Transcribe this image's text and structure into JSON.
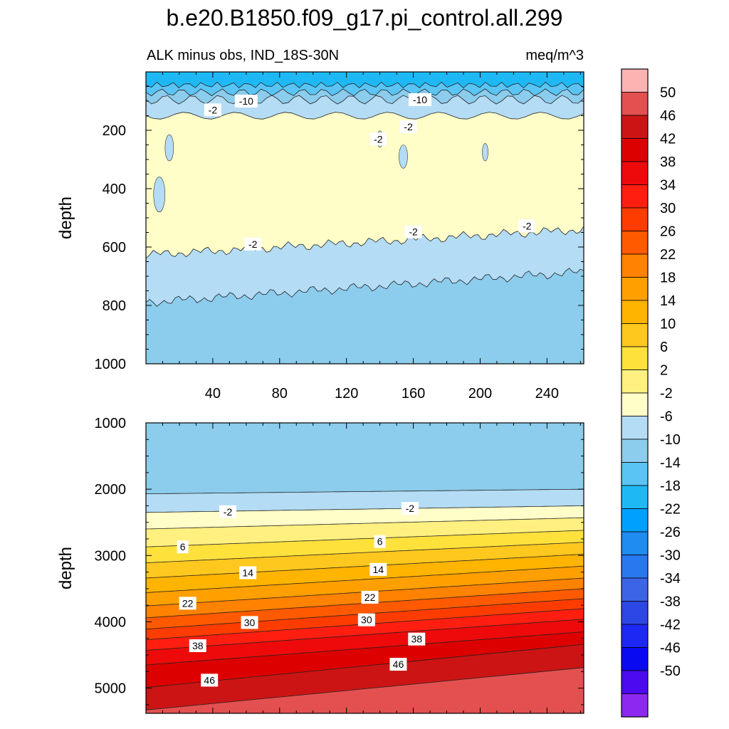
{
  "chart_data": [
    {
      "type": "contour",
      "panel": "upper",
      "title": "b.e20.B1850.f09_g17.pi_control.all.299",
      "subtitle_left": "ALK minus obs, IND_18S-30N",
      "subtitle_right": "meq/m^3",
      "xlabel": "",
      "ylabel": "depth",
      "xlim": [
        0,
        262
      ],
      "ylim": [
        1000,
        0
      ],
      "x_ticks": [
        40,
        80,
        120,
        160,
        200,
        240
      ],
      "y_ticks": [
        200,
        400,
        600,
        800,
        1000
      ],
      "contour_levels": [
        -50,
        -46,
        -42,
        -38,
        -34,
        -30,
        -26,
        -22,
        -18,
        -14,
        -10,
        -6,
        -2,
        2,
        6,
        10,
        14,
        18,
        22,
        26,
        30,
        34,
        38,
        42,
        46,
        50
      ],
      "contour_lines": [
        {
          "level": -2,
          "depth_left": 627,
          "depth_right": 540
        },
        {
          "level": -6,
          "depth_left": 790,
          "depth_right": 685
        }
      ],
      "contour_labels": [
        {
          "text": "-2",
          "x": 40,
          "depth": 130
        },
        {
          "text": "-10",
          "x": 60,
          "depth": 100
        },
        {
          "text": "-10",
          "x": 164,
          "depth": 95
        },
        {
          "text": "-2",
          "x": 139,
          "depth": 230
        },
        {
          "text": "-2",
          "x": 157,
          "depth": 188
        },
        {
          "text": "-2",
          "x": 64,
          "depth": 590
        },
        {
          "text": "-2",
          "x": 160,
          "depth": 548
        },
        {
          "text": "-2",
          "x": 228,
          "depth": 528
        }
      ]
    },
    {
      "type": "contour",
      "panel": "lower",
      "xlabel": "",
      "ylabel": "depth",
      "xlim": [
        0,
        262
      ],
      "ylim": [
        5380,
        1000
      ],
      "y_ticks": [
        1000,
        2000,
        3000,
        4000,
        5000
      ],
      "contour_lines": [
        {
          "level": -6,
          "depth_left": 2070,
          "depth_right": 2000
        },
        {
          "level": -2,
          "depth_left": 2350,
          "depth_right": 2250
        },
        {
          "level": 2,
          "depth_left": 2600,
          "depth_right": 2430
        },
        {
          "level": 6,
          "depth_left": 2870,
          "depth_right": 2620
        },
        {
          "level": 10,
          "depth_left": 3110,
          "depth_right": 2800
        },
        {
          "level": 14,
          "depth_left": 3340,
          "depth_right": 2980
        },
        {
          "level": 18,
          "depth_left": 3560,
          "depth_right": 3160
        },
        {
          "level": 22,
          "depth_left": 3760,
          "depth_right": 3340
        },
        {
          "level": 26,
          "depth_left": 3940,
          "depth_right": 3500
        },
        {
          "level": 30,
          "depth_left": 4110,
          "depth_right": 3650
        },
        {
          "level": 34,
          "depth_left": 4270,
          "depth_right": 3800
        },
        {
          "level": 38,
          "depth_left": 4430,
          "depth_right": 3960
        },
        {
          "level": 42,
          "depth_left": 4650,
          "depth_right": 4150
        },
        {
          "level": 46,
          "depth_left": 4990,
          "depth_right": 4340
        },
        {
          "level": 50,
          "depth_left": 5330,
          "depth_right": 4690
        }
      ],
      "contour_labels": [
        {
          "text": "-2",
          "x": 49,
          "depth": 2340
        },
        {
          "text": "-2",
          "x": 158,
          "depth": 2290
        },
        {
          "text": "6",
          "x": 22,
          "depth": 2870
        },
        {
          "text": "6",
          "x": 140,
          "depth": 2790
        },
        {
          "text": "14",
          "x": 61,
          "depth": 3260
        },
        {
          "text": "14",
          "x": 139,
          "depth": 3210
        },
        {
          "text": "22",
          "x": 25,
          "depth": 3720
        },
        {
          "text": "22",
          "x": 134,
          "depth": 3630
        },
        {
          "text": "30",
          "x": 62,
          "depth": 4010
        },
        {
          "text": "30",
          "x": 132,
          "depth": 3970
        },
        {
          "text": "38",
          "x": 31,
          "depth": 4360
        },
        {
          "text": "38",
          "x": 162,
          "depth": 4260
        },
        {
          "text": "46",
          "x": 38,
          "depth": 4880
        },
        {
          "text": "46",
          "x": 151,
          "depth": 4640
        }
      ]
    }
  ],
  "colorbar": {
    "tick_labels": [
      "50",
      "46",
      "42",
      "38",
      "34",
      "30",
      "26",
      "22",
      "18",
      "14",
      "10",
      "6",
      "2",
      "-2",
      "-6",
      "-10",
      "-14",
      "-18",
      "-22",
      "-26",
      "-30",
      "-34",
      "-38",
      "-42",
      "-46",
      "-50"
    ],
    "colors": [
      "#feb3b3",
      "#e45050",
      "#cc1414",
      "#dd0000",
      "#ee0a0a",
      "#ff1e10",
      "#ff3c00",
      "#ff5a00",
      "#ff8200",
      "#ffa000",
      "#ffb400",
      "#ffc81e",
      "#ffe13c",
      "#fff080",
      "#fffdc8",
      "#b4dcf5",
      "#8cccec",
      "#5ac5f5",
      "#1eb9f5",
      "#00a0ff",
      "#1e8cf0",
      "#2878f0",
      "#3c64e6",
      "#2d46e6",
      "#1e28f5",
      "#0a0af0",
      "#4b0af0",
      "#8c28f0"
    ]
  }
}
